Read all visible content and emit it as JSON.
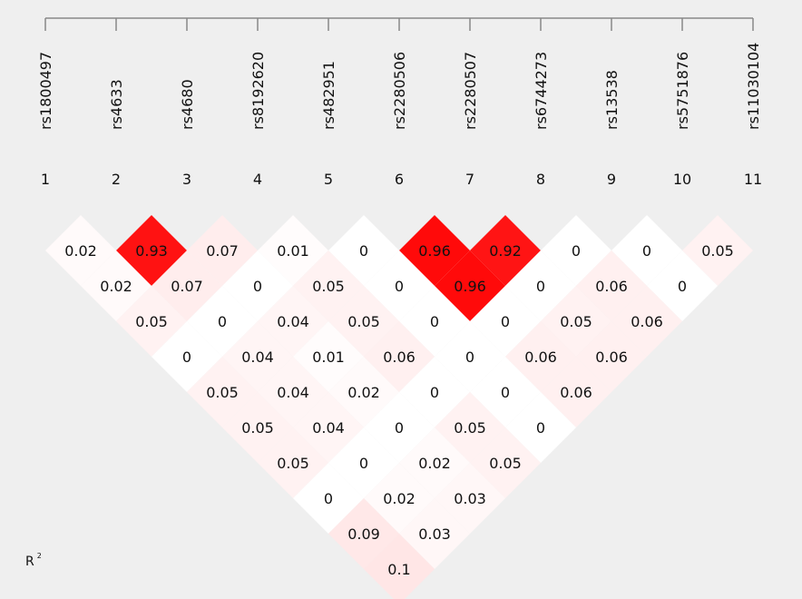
{
  "chart_data": {
    "type": "heatmap",
    "snps": [
      "rs1800497",
      "rs4633",
      "rs4680",
      "rs8192620",
      "rs482951",
      "rs2280506",
      "rs2280507",
      "rs6744273",
      "rs13538",
      "rs5751876",
      "rs11030104"
    ],
    "indices": [
      "1",
      "2",
      "3",
      "4",
      "5",
      "6",
      "7",
      "8",
      "9",
      "10",
      "11"
    ],
    "statistic_label": "R",
    "statistic_superscript": "2",
    "values": [
      [
        [
          1,
          2
        ],
        "0.02"
      ],
      [
        [
          2,
          3
        ],
        "0.93"
      ],
      [
        [
          3,
          4
        ],
        "0.07"
      ],
      [
        [
          4,
          5
        ],
        "0.01"
      ],
      [
        [
          5,
          6
        ],
        "0"
      ],
      [
        [
          6,
          7
        ],
        "0.96"
      ],
      [
        [
          7,
          8
        ],
        "0.92"
      ],
      [
        [
          8,
          9
        ],
        "0"
      ],
      [
        [
          9,
          10
        ],
        "0"
      ],
      [
        [
          10,
          11
        ],
        "0.05"
      ],
      [
        [
          1,
          3
        ],
        "0.02"
      ],
      [
        [
          2,
          4
        ],
        "0.07"
      ],
      [
        [
          3,
          5
        ],
        "0"
      ],
      [
        [
          4,
          6
        ],
        "0.05"
      ],
      [
        [
          5,
          7
        ],
        "0"
      ],
      [
        [
          6,
          8
        ],
        "0.96"
      ],
      [
        [
          7,
          9
        ],
        "0"
      ],
      [
        [
          8,
          10
        ],
        "0.06"
      ],
      [
        [
          9,
          11
        ],
        "0"
      ],
      [
        [
          1,
          4
        ],
        "0.05"
      ],
      [
        [
          2,
          5
        ],
        "0"
      ],
      [
        [
          3,
          6
        ],
        "0.04"
      ],
      [
        [
          4,
          7
        ],
        "0.05"
      ],
      [
        [
          5,
          8
        ],
        "0"
      ],
      [
        [
          6,
          9
        ],
        "0"
      ],
      [
        [
          7,
          10
        ],
        "0.05"
      ],
      [
        [
          8,
          11
        ],
        "0.06"
      ],
      [
        [
          1,
          5
        ],
        "0"
      ],
      [
        [
          2,
          6
        ],
        "0.04"
      ],
      [
        [
          3,
          7
        ],
        "0.01"
      ],
      [
        [
          4,
          8
        ],
        "0.06"
      ],
      [
        [
          5,
          9
        ],
        "0"
      ],
      [
        [
          6,
          10
        ],
        "0.06"
      ],
      [
        [
          7,
          11
        ],
        "0.06"
      ],
      [
        [
          1,
          6
        ],
        "0.05"
      ],
      [
        [
          2,
          7
        ],
        "0.04"
      ],
      [
        [
          3,
          8
        ],
        "0.02"
      ],
      [
        [
          4,
          9
        ],
        "0"
      ],
      [
        [
          5,
          10
        ],
        "0"
      ],
      [
        [
          6,
          11
        ],
        "0.06"
      ],
      [
        [
          1,
          7
        ],
        "0.05"
      ],
      [
        [
          2,
          8
        ],
        "0.04"
      ],
      [
        [
          3,
          9
        ],
        "0"
      ],
      [
        [
          4,
          10
        ],
        "0.05"
      ],
      [
        [
          5,
          11
        ],
        "0"
      ],
      [
        [
          1,
          8
        ],
        "0.05"
      ],
      [
        [
          2,
          9
        ],
        "0"
      ],
      [
        [
          3,
          10
        ],
        "0.02"
      ],
      [
        [
          4,
          11
        ],
        "0.05"
      ],
      [
        [
          1,
          9
        ],
        "0"
      ],
      [
        [
          2,
          10
        ],
        "0.02"
      ],
      [
        [
          3,
          11
        ],
        "0.03"
      ],
      [
        [
          1,
          10
        ],
        "0.09"
      ],
      [
        [
          2,
          11
        ],
        "0.03"
      ],
      [
        [
          1,
          11
        ],
        "0.1"
      ]
    ],
    "color_scale": {
      "low": "#ffffff",
      "high": "#ff0000"
    },
    "background": "#efefef"
  }
}
